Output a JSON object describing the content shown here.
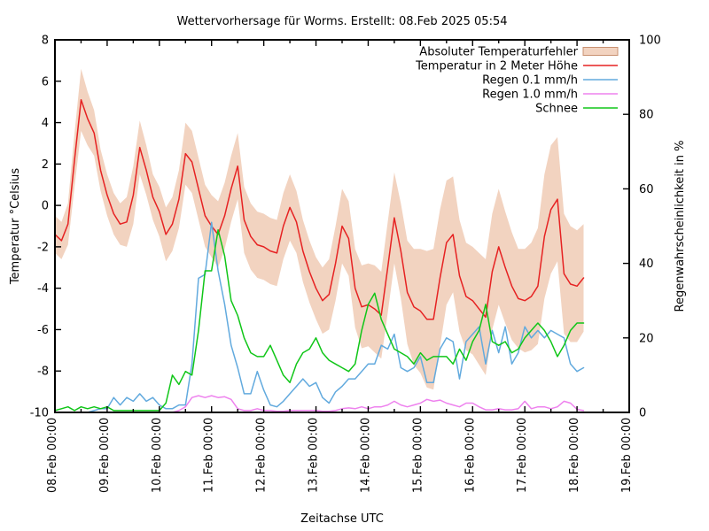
{
  "title": "Wettervorhersage für Worms. Erstellt: 08.Feb 2025 05:54",
  "axes": {
    "x": {
      "label": "Zeitachse UTC",
      "ticks": [
        "08.Feb 00:00",
        "09.Feb 00:00",
        "10.Feb 00:00",
        "11.Feb 00:00",
        "12.Feb 00:00",
        "13.Feb 00:00",
        "14.Feb 00:00",
        "15.Feb 00:00",
        "16.Feb 00:00",
        "17.Feb 00:00",
        "18.Feb 00:00",
        "19.Feb 00:00"
      ],
      "range_hours": [
        0,
        264
      ],
      "minor_tick_every_hours": 12
    },
    "y_left": {
      "label": "Temperatur °Celsius",
      "ticks": [
        8,
        6,
        4,
        2,
        0,
        -2,
        -4,
        -6,
        -8,
        -10
      ],
      "range": [
        -10,
        8
      ]
    },
    "y_right": {
      "label": "Regenwahrscheinlichkeit in %",
      "ticks": [
        100,
        80,
        60,
        40,
        20,
        0
      ],
      "range": [
        0,
        100
      ]
    }
  },
  "colors": {
    "band_fill": "#f2d3c0",
    "band_edge": "#c89070",
    "temperature": "#e62222",
    "rain01": "#62aade",
    "rain10": "#ee82ee",
    "snow": "#10c618",
    "axis": "#000000",
    "background": "#ffffff"
  },
  "chart_data": {
    "type": "line",
    "x_unit": "hours since 08.Feb 2025 00:00 UTC",
    "x_hours": [
      0,
      3,
      6,
      9,
      12,
      15,
      18,
      21,
      24,
      27,
      30,
      33,
      36,
      39,
      42,
      45,
      48,
      51,
      54,
      57,
      60,
      63,
      66,
      69,
      72,
      75,
      78,
      81,
      84,
      87,
      90,
      93,
      96,
      99,
      102,
      105,
      108,
      111,
      114,
      117,
      120,
      123,
      126,
      129,
      132,
      135,
      138,
      141,
      144,
      147,
      150,
      153,
      156,
      159,
      162,
      165,
      168,
      171,
      174,
      177,
      180,
      183,
      186,
      189,
      192,
      195,
      198,
      201,
      204,
      207,
      210,
      213,
      216,
      219,
      222,
      225,
      228,
      231,
      234,
      237,
      240,
      243
    ],
    "series": [
      {
        "name": "Absoluter Temperaturfehler",
        "style": "band",
        "axis": "left",
        "color": "#f2d3c0",
        "border_color": "#c89070",
        "error_around": "Temperatur in 2 Meter Höhe",
        "error_values": [
          0.9,
          0.9,
          1.0,
          1.3,
          1.5,
          1.3,
          1.1,
          1.0,
          1.0,
          1.0,
          1.0,
          1.2,
          1.4,
          1.3,
          1.2,
          1.1,
          1.2,
          1.3,
          1.3,
          1.4,
          1.5,
          1.5,
          1.5,
          1.5,
          1.5,
          1.6,
          1.6,
          1.6,
          1.6,
          1.6,
          1.6,
          1.6,
          1.6,
          1.6,
          1.6,
          1.6,
          1.6,
          1.5,
          1.5,
          1.5,
          1.5,
          1.6,
          1.7,
          1.8,
          1.8,
          1.8,
          1.9,
          2.0,
          2.0,
          2.1,
          2.1,
          2.2,
          2.2,
          2.3,
          2.5,
          2.8,
          3.0,
          3.3,
          3.4,
          3.3,
          3.0,
          2.8,
          2.7,
          2.6,
          2.6,
          2.7,
          2.8,
          2.8,
          2.8,
          2.7,
          2.6,
          2.4,
          2.5,
          2.6,
          2.8,
          3.0,
          3.1,
          3.0,
          2.9,
          2.8,
          2.7,
          2.6
        ]
      },
      {
        "name": "Temperatur in 2 Meter Höhe",
        "style": "line",
        "axis": "left",
        "color": "#e62222",
        "values": [
          -1.4,
          -1.7,
          -0.9,
          2.2,
          5.1,
          4.2,
          3.5,
          1.7,
          0.5,
          -0.4,
          -0.9,
          -0.8,
          0.5,
          2.8,
          1.7,
          0.4,
          -0.3,
          -1.4,
          -0.9,
          0.3,
          2.5,
          2.1,
          0.8,
          -0.5,
          -1.0,
          -1.4,
          -0.5,
          0.8,
          1.9,
          -0.7,
          -1.5,
          -1.9,
          -2.0,
          -2.2,
          -2.3,
          -1.0,
          -0.1,
          -0.8,
          -2.2,
          -3.2,
          -4.0,
          -4.6,
          -4.3,
          -2.8,
          -1.0,
          -1.6,
          -4.0,
          -4.9,
          -4.8,
          -5.0,
          -5.3,
          -3.0,
          -0.6,
          -2.2,
          -4.2,
          -4.9,
          -5.1,
          -5.5,
          -5.5,
          -3.5,
          -1.8,
          -1.4,
          -3.4,
          -4.4,
          -4.6,
          -5.0,
          -5.4,
          -3.2,
          -2.0,
          -3.0,
          -3.9,
          -4.5,
          -4.6,
          -4.4,
          -3.9,
          -1.5,
          -0.2,
          0.3,
          -3.3,
          -3.8,
          -3.9,
          -3.5
        ]
      },
      {
        "name": "Regen 0.1 mm/h",
        "style": "line",
        "axis": "right",
        "color": "#62aade",
        "values": [
          0,
          0,
          0,
          0,
          0,
          0,
          0.5,
          1,
          1,
          4,
          2,
          4,
          3,
          5,
          3,
          4,
          2,
          1,
          1,
          2,
          2,
          13,
          36,
          37,
          51,
          38,
          29,
          18,
          12,
          5,
          5,
          11,
          6,
          2,
          1.5,
          3,
          5,
          7,
          9,
          7,
          8,
          4,
          2.5,
          5.5,
          7,
          9,
          9,
          11,
          13,
          13,
          18,
          17,
          21,
          12,
          11,
          12,
          15,
          8,
          8,
          17,
          20,
          19,
          9,
          19,
          21,
          23,
          13,
          22,
          16,
          23,
          13,
          16,
          23,
          20,
          22,
          20,
          22,
          21,
          20,
          13,
          11,
          12
        ]
      },
      {
        "name": "Regen 1.0 mm/h",
        "style": "line",
        "axis": "right",
        "color": "#ee82ee",
        "values": [
          0,
          0,
          0,
          0,
          0,
          0,
          0,
          0,
          0,
          0,
          0,
          0,
          0,
          0,
          0,
          0,
          0,
          0,
          0,
          0.5,
          1.5,
          4,
          4.5,
          4,
          4.5,
          4,
          4.2,
          3.5,
          1,
          0.5,
          0.5,
          1,
          0.5,
          0.5,
          0.3,
          0.3,
          0.5,
          0.5,
          0.5,
          0.5,
          0.5,
          0.3,
          0.3,
          0.5,
          1,
          1.2,
          1,
          1.5,
          1,
          1.5,
          1.5,
          2,
          3,
          2,
          1.5,
          2,
          2.5,
          3.5,
          3,
          3.3,
          2.5,
          2,
          1.5,
          2.5,
          2.5,
          1.5,
          0.7,
          0.7,
          1,
          0.7,
          0.7,
          1,
          3,
          1,
          1.5,
          1.5,
          1,
          1.5,
          3,
          2.5,
          0.8,
          0.5
        ]
      },
      {
        "name": "Schnee",
        "style": "line",
        "axis": "right",
        "color": "#10c618",
        "values": [
          0.5,
          1,
          1.5,
          0.5,
          1.5,
          1,
          1.5,
          1,
          1.5,
          0.5,
          0.5,
          0.5,
          0.5,
          0.5,
          0.5,
          0.5,
          0.5,
          2.5,
          10,
          7.5,
          11,
          10,
          22,
          38,
          38,
          49,
          42,
          30,
          26,
          20,
          16,
          15,
          15,
          18,
          14,
          10,
          8,
          13,
          16,
          17,
          20,
          16,
          14,
          13,
          12,
          11,
          13,
          22,
          29,
          32,
          25,
          21,
          17,
          16,
          15,
          13,
          16,
          14,
          15,
          15,
          15,
          13,
          17,
          14,
          19,
          22,
          29,
          19,
          18,
          19,
          16,
          17,
          20,
          22,
          24,
          22,
          19,
          15,
          18,
          22,
          24,
          24
        ]
      }
    ],
    "legend_position": "top-right"
  }
}
